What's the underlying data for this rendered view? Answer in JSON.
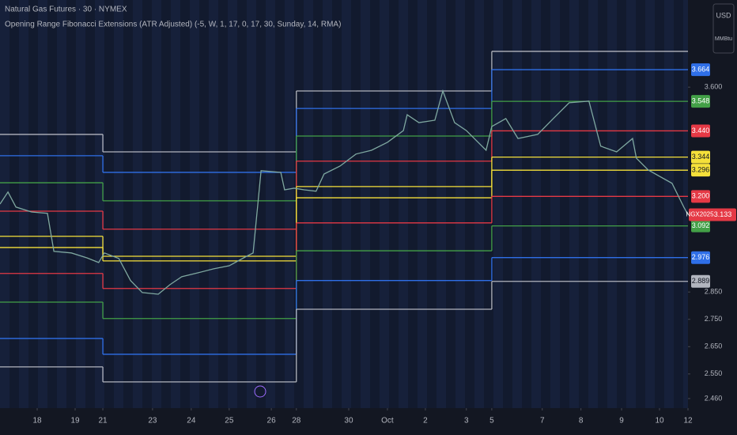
{
  "chart_data": {
    "type": "line",
    "title": "Natural Gas Futures · 30 · NYMEX",
    "subtitle": "Opening Range Fibonacci Extensions (ATR Adjusted) (-5, W, 1, 17, 0, 17, 30, Sunday, 14, RMA)",
    "currency": "USD",
    "unit": "MMBtu",
    "xlim": [
      0,
      18.13
    ],
    "ylim": [
      2.425,
      3.919
    ],
    "xticks": [
      {
        "value": 0.98,
        "label": "18"
      },
      {
        "value": 1.98,
        "label": "19"
      },
      {
        "value": 2.71,
        "label": "21"
      },
      {
        "value": 4.02,
        "label": "23"
      },
      {
        "value": 5.04,
        "label": "24"
      },
      {
        "value": 6.04,
        "label": "25"
      },
      {
        "value": 7.15,
        "label": "26"
      },
      {
        "value": 7.81,
        "label": "28"
      },
      {
        "value": 9.19,
        "label": "30"
      },
      {
        "value": 10.21,
        "label": "Oct"
      },
      {
        "value": 11.21,
        "label": "2"
      },
      {
        "value": 12.29,
        "label": "3"
      },
      {
        "value": 12.96,
        "label": "5"
      },
      {
        "value": 14.29,
        "label": "7"
      },
      {
        "value": 15.31,
        "label": "8"
      },
      {
        "value": 16.38,
        "label": "9"
      },
      {
        "value": 17.38,
        "label": "10"
      },
      {
        "value": 18.13,
        "label": "12"
      }
    ],
    "yticks": [
      {
        "value": 2.46,
        "label": "2.460"
      },
      {
        "value": 2.55,
        "label": "2.550"
      },
      {
        "value": 2.65,
        "label": "2.650"
      },
      {
        "value": 2.75,
        "label": "2.750"
      },
      {
        "value": 2.85,
        "label": "2.850"
      },
      {
        "value": 3.6,
        "label": "3.600"
      }
    ],
    "period_starts": [
      0,
      2.71,
      7.81,
      12.96
    ],
    "levels": [
      {
        "color": "#b2b5be",
        "values": [
          3.427,
          3.363,
          3.586,
          3.731
        ]
      },
      {
        "color": "#2f6fe8",
        "values": [
          3.349,
          3.288,
          3.522,
          3.664
        ]
      },
      {
        "color": "#43a047",
        "values": [
          3.25,
          3.184,
          3.421,
          3.548
        ]
      },
      {
        "color": "#e53945",
        "values": [
          3.146,
          3.08,
          3.329,
          3.44
        ]
      },
      {
        "color": "#f5e03a",
        "values": [
          3.054,
          2.981,
          3.236,
          3.344
        ]
      },
      {
        "color": "#f5e03a",
        "values": [
          3.013,
          2.964,
          3.195,
          3.296
        ]
      },
      {
        "color": "#e53945",
        "values": [
          2.918,
          2.863,
          3.103,
          3.2
        ]
      },
      {
        "color": "#43a047",
        "values": [
          2.813,
          2.753,
          3.001,
          3.092
        ]
      },
      {
        "color": "#2f6fe8",
        "values": [
          2.68,
          2.622,
          2.892,
          2.976
        ]
      },
      {
        "color": "#b2b5be",
        "values": [
          2.576,
          2.521,
          2.787,
          2.889
        ]
      }
    ],
    "price": {
      "color": "#7fa8a0",
      "x": [
        0,
        0.21,
        0.42,
        0.83,
        1.25,
        1.42,
        1.88,
        2.29,
        2.6,
        2.75,
        3.13,
        3.44,
        3.75,
        4.17,
        4.48,
        4.79,
        5.21,
        5.63,
        6.04,
        6.46,
        6.67,
        6.88,
        7.4,
        7.5,
        7.75,
        8.02,
        8.33,
        8.54,
        8.96,
        9.38,
        9.79,
        10.21,
        10.63,
        10.73,
        11.04,
        11.46,
        11.67,
        11.98,
        12.29,
        12.6,
        12.81,
        12.96,
        13.33,
        13.65,
        14.17,
        14.58,
        15,
        15.52,
        15.83,
        16.25,
        16.67,
        16.77,
        17.08,
        17.71,
        18.02,
        18.13
      ],
      "values": [
        3.172,
        3.216,
        3.161,
        3.143,
        3.138,
        2.999,
        2.993,
        2.975,
        2.958,
        2.993,
        2.973,
        2.892,
        2.848,
        2.842,
        2.877,
        2.906,
        2.92,
        2.935,
        2.946,
        2.978,
        2.993,
        3.294,
        3.288,
        3.224,
        3.23,
        3.224,
        3.219,
        3.282,
        3.311,
        3.355,
        3.369,
        3.398,
        3.441,
        3.499,
        3.47,
        3.479,
        3.586,
        3.47,
        3.441,
        3.398,
        3.369,
        3.456,
        3.485,
        3.412,
        3.427,
        3.485,
        3.543,
        3.549,
        3.384,
        3.363,
        3.412,
        3.34,
        3.297,
        3.248,
        3.161,
        3.133
      ]
    },
    "price_markers": {
      "values": [
        3.664,
        3.548,
        3.44,
        3.344,
        3.296,
        3.2,
        3.092,
        2.976,
        2.889
      ],
      "value_labels": [
        "3.664",
        "3.548",
        "3.440",
        "3.344",
        "3.296",
        "3.200",
        "3.092",
        "2.976",
        "2.889"
      ],
      "colors": [
        "#2f6fe8",
        "#43a047",
        "#e53945",
        "#f5e03a",
        "#f5e03a",
        "#e53945",
        "#43a047",
        "#2f6fe8",
        "#b2b5be"
      ]
    },
    "last_price": {
      "symbol": "NGX2025",
      "value": 3.133,
      "value_label": "3.133",
      "color": "#e53945"
    }
  }
}
